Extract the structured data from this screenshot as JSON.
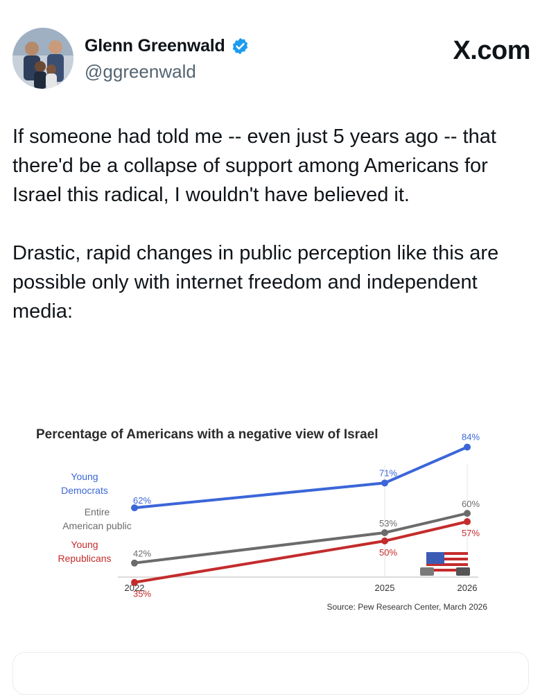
{
  "author": {
    "display_name": "Glenn Greenwald",
    "handle": "@ggreenwald",
    "verified_icon": "verified-badge-icon"
  },
  "brand": {
    "label": "X.com"
  },
  "tweet": {
    "paragraphs": [
      "If someone had told me -- even just 5 years ago -- that there'd be a collapse of support among Americans for Israel this radical, I wouldn't have believed it.",
      "Drastic, rapid changes in public perception like this are possible only with internet freedom and independent media:"
    ]
  },
  "colors": {
    "democrats": "#3b66d8",
    "public": "#6b6b6b",
    "republicans": "#c42b2b",
    "verified": "#1d9bf0"
  },
  "chart_data": {
    "type": "line",
    "title": "Percentage of Americans with a negative view of Israel",
    "x": [
      2022,
      2025,
      2026
    ],
    "x_tick_labels": [
      "2022",
      "2025",
      "2026"
    ],
    "series": [
      {
        "name": "Young Democrats",
        "label_lines": [
          "Young",
          "Democrats"
        ],
        "values": [
          62,
          71,
          84
        ],
        "value_labels": [
          "62%",
          "71%",
          "84%"
        ],
        "color": "#3b66d8"
      },
      {
        "name": "Entire American public",
        "label_lines": [
          "Entire",
          "American public"
        ],
        "values": [
          42,
          53,
          60
        ],
        "value_labels": [
          "42%",
          "53%",
          "60%"
        ],
        "color": "#6b6b6b"
      },
      {
        "name": "Young Republicans",
        "label_lines": [
          "Young",
          "Republicans"
        ],
        "values": [
          35,
          50,
          57
        ],
        "value_labels": [
          "35%",
          "50%",
          "57%"
        ],
        "color": "#c42b2b"
      }
    ],
    "source": "Source: Pew Research Center, March 2026",
    "grid": false
  }
}
